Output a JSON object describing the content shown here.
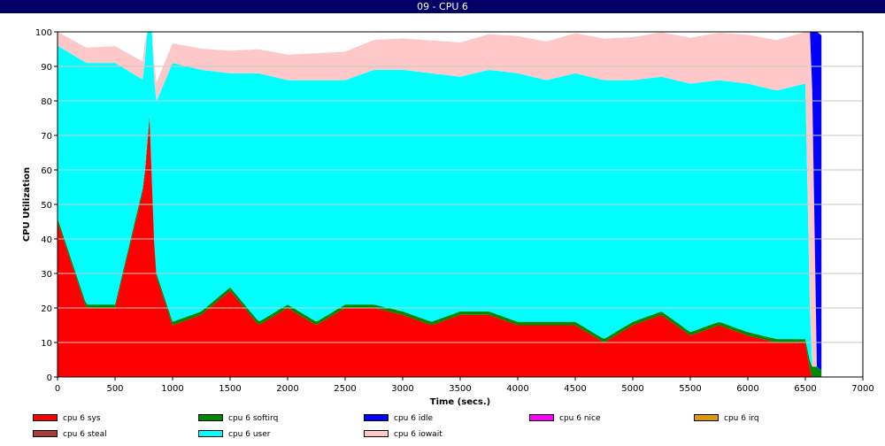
{
  "window": {
    "title": "09 - CPU 6"
  },
  "chart_data": {
    "type": "area",
    "title": "",
    "xlabel": "Time (secs.)",
    "ylabel": "CPU Utilization",
    "xlim": [
      0,
      7000
    ],
    "ylim": [
      0,
      100
    ],
    "x_ticks": [
      0,
      500,
      1000,
      1500,
      2000,
      2500,
      3000,
      3500,
      4000,
      4500,
      5000,
      5500,
      6000,
      6500,
      7000
    ],
    "y_ticks": [
      0,
      10,
      20,
      30,
      40,
      50,
      60,
      70,
      80,
      90,
      100
    ],
    "grid": true,
    "legend_position": "bottom",
    "stack_order": [
      "cpu 6 sys",
      "cpu 6 softirq",
      "cpu 6 user",
      "cpu 6 iowait",
      "cpu 6 idle"
    ],
    "series": [
      {
        "name": "cpu 6 sys",
        "color": "#ff0000",
        "x": [
          0,
          250,
          500,
          750,
          800,
          850,
          1000,
          1250,
          1500,
          1750,
          2000,
          2250,
          2500,
          2750,
          3000,
          3250,
          3500,
          3750,
          4000,
          4250,
          4500,
          4750,
          5000,
          5250,
          5500,
          5750,
          6000,
          6250,
          6500,
          6550,
          6600,
          6640
        ],
        "values": [
          45,
          20,
          20,
          55,
          75,
          30,
          15,
          18,
          25,
          15,
          20,
          15,
          20,
          20,
          18,
          15,
          18,
          18,
          15,
          15,
          15,
          10,
          15,
          18,
          12,
          15,
          12,
          10,
          10,
          0,
          0,
          0
        ]
      },
      {
        "name": "cpu 6 softirq",
        "color": "#008800",
        "x": [
          0,
          1000,
          2000,
          3000,
          4000,
          5000,
          6000,
          6500,
          6550,
          6600,
          6640
        ],
        "values": [
          1,
          1,
          1,
          1,
          1,
          1,
          1,
          1,
          3,
          3,
          2
        ]
      },
      {
        "name": "cpu 6 idle",
        "color": "#0000ff",
        "x": [
          0,
          6540,
          6560,
          6580,
          6600,
          6620,
          6640
        ],
        "values": [
          0,
          0,
          20,
          95,
          97,
          97,
          97
        ]
      },
      {
        "name": "cpu 6 nice",
        "color": "#ff00ff",
        "x": [
          0,
          6640
        ],
        "values": [
          0,
          0
        ]
      },
      {
        "name": "cpu 6 irq",
        "color": "#dd9900",
        "x": [
          0,
          6640
        ],
        "values": [
          0,
          0
        ]
      },
      {
        "name": "cpu 6 steal",
        "color": "#a83c3c",
        "x": [
          0,
          6640
        ],
        "values": [
          0,
          0
        ]
      },
      {
        "name": "cpu 6 user",
        "color": "#00ffff",
        "x": [
          0,
          250,
          500,
          750,
          1000,
          1250,
          1500,
          1750,
          2000,
          2250,
          2500,
          2750,
          3000,
          3250,
          3500,
          3750,
          4000,
          4250,
          4500,
          4750,
          5000,
          5250,
          5500,
          5750,
          6000,
          6250,
          6500,
          6550,
          6600,
          6640
        ],
        "values": [
          50,
          70,
          70,
          30,
          75,
          70,
          62,
          72,
          65,
          70,
          65,
          68,
          70,
          72,
          68,
          70,
          72,
          70,
          72,
          75,
          70,
          68,
          72,
          70,
          72,
          72,
          74,
          0,
          0,
          0
        ]
      },
      {
        "name": "cpu 6 iowait",
        "color": "#ffc8c8",
        "x": [
          0,
          6500,
          6540,
          6560,
          6600,
          6640
        ],
        "values": [
          4,
          15,
          100,
          80,
          0,
          0
        ]
      }
    ]
  }
}
